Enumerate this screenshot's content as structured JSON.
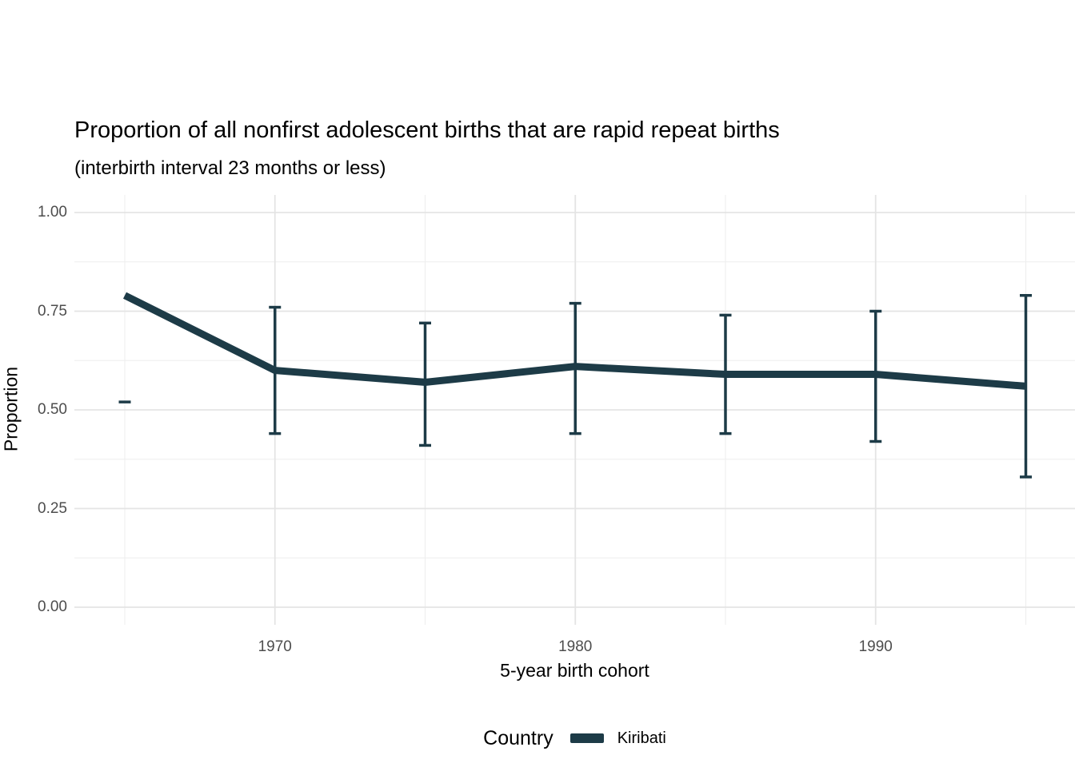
{
  "figure": {
    "title": "Proportion of all nonfirst adolescent births that are rapid repeat births",
    "subtitle": "(interbirth interval 23 months or less)"
  },
  "axes": {
    "x": {
      "title": "5-year birth cohort",
      "tick_labels": [
        "1970",
        "1980",
        "1990"
      ]
    },
    "y": {
      "title": "Proportion",
      "tick_labels": [
        "0.00",
        "0.25",
        "0.50",
        "0.75",
        "1.00"
      ]
    }
  },
  "legend": {
    "title": "Country",
    "entries": [
      {
        "label": "Kiribati",
        "color": "#1d3b47"
      }
    ]
  },
  "colors": {
    "series": "#1d3b47",
    "grid_major": "#e4e4e4",
    "grid_minor": "#eeeeee",
    "tick_text": "#4d4d4d",
    "text": "#000000",
    "background": "#ffffff"
  },
  "chart_data": {
    "type": "line",
    "title": "Proportion of all nonfirst adolescent births that are rapid repeat births",
    "subtitle": "(interbirth interval 23 months or less)",
    "xlabel": "5-year birth cohort",
    "ylabel": "Proportion",
    "ylim": [
      0,
      1
    ],
    "xlim_data": [
      1965,
      1995
    ],
    "x_ticks": [
      1970,
      1980,
      1990
    ],
    "y_ticks": [
      0,
      0.25,
      0.5,
      0.75,
      1
    ],
    "grid": "major and minor gridlines, light gray on white",
    "legend_position": "bottom-center",
    "x": [
      1965,
      1970,
      1975,
      1980,
      1985,
      1990,
      1995
    ],
    "series": [
      {
        "name": "Kiribati",
        "color": "#1d3b47",
        "values": [
          0.79,
          0.6,
          0.57,
          0.61,
          0.59,
          0.59,
          0.56
        ],
        "ci_lower": [
          0.52,
          0.44,
          0.41,
          0.44,
          0.44,
          0.42,
          0.33
        ],
        "ci_upper": [
          null,
          0.76,
          0.72,
          0.77,
          0.74,
          0.75,
          0.79
        ],
        "note": "error bar at 1965 shows only its lower cap; no vertical bar visible"
      }
    ]
  }
}
